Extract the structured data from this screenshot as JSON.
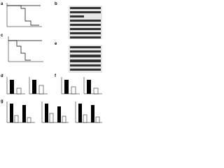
{
  "panels": [
    {
      "label": "a"
    },
    {
      "label": "b"
    },
    {
      "label": "c"
    },
    {
      "label": "d"
    },
    {
      "label": "e"
    },
    {
      "label": "f"
    },
    {
      "label": "g"
    }
  ]
}
